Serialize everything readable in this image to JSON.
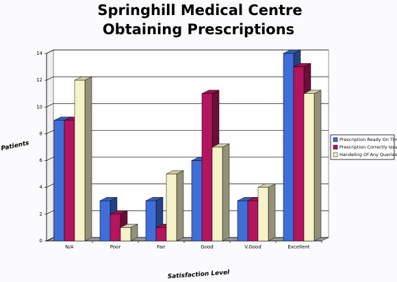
{
  "chart_data": {
    "type": "bar3d",
    "title": "Springhill Medical Centre",
    "subtitle": "Obtaining Prescriptions",
    "y_label": "Patients",
    "x_label": "Satisfaction Level",
    "categories": [
      "N/A",
      "Poor",
      "Fair",
      "Good",
      "V.Good",
      "Excellent"
    ],
    "series": [
      {
        "name": "Prescription Ready On Time",
        "color": "#3f6ed8",
        "values": [
          9,
          3,
          3,
          6,
          3,
          14
        ]
      },
      {
        "name": "Prescription Correctly Issued",
        "color": "#b3155f",
        "values": [
          9,
          2,
          1,
          11,
          3,
          13
        ]
      },
      {
        "name": "Handeling Of Any Queries",
        "color": "#f6f2c9",
        "values": [
          12,
          1,
          5,
          7,
          4,
          11
        ]
      }
    ],
    "ylim": [
      0,
      14
    ],
    "yticks": [
      0,
      2,
      4,
      6,
      8,
      10,
      12,
      14
    ],
    "grid": true,
    "legend": "right"
  }
}
